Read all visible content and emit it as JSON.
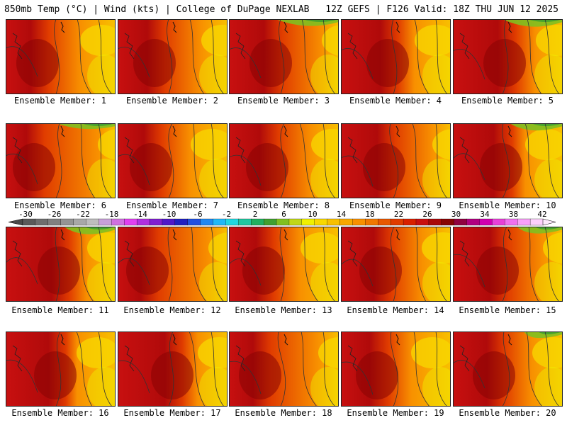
{
  "header": {
    "left": "850mb Temp (°C) | Wind (kts) | College of DuPage NEXLAB",
    "right": "12Z GEFS | F126 Valid: 18Z THU JUN 12 2025"
  },
  "caption_prefix": "Ensemble Member:",
  "members": [
    1,
    2,
    3,
    4,
    5,
    6,
    7,
    8,
    9,
    10,
    11,
    12,
    13,
    14,
    15,
    16,
    17,
    18,
    19,
    20
  ],
  "colorbar": {
    "labels": [
      "-30",
      "-26",
      "-22",
      "-18",
      "-14",
      "-10",
      "-6",
      "-2",
      "2",
      "6",
      "10",
      "14",
      "18",
      "22",
      "26",
      "30",
      "34",
      "38",
      "42"
    ],
    "colors": [
      "#5a5a5a",
      "#6e6e6e",
      "#808080",
      "#949494",
      "#a8a8a8",
      "#bdbdbd",
      "#c8a0d8",
      "#d070e0",
      "#e040f0",
      "#b030e0",
      "#8020d0",
      "#5018c8",
      "#2020c0",
      "#2050e0",
      "#2088f0",
      "#20b8f8",
      "#20d8e0",
      "#20c8a0",
      "#20b060",
      "#40a030",
      "#80c020",
      "#c0d818",
      "#f0f000",
      "#f8d800",
      "#f8c000",
      "#f8a800",
      "#f89000",
      "#f07800",
      "#e85800",
      "#e03c00",
      "#d82000",
      "#c81010",
      "#a80808",
      "#880404",
      "#900040",
      "#b00080",
      "#d000b0",
      "#e840d8",
      "#f070f0",
      "#f8a0f8",
      "#fcd0fc"
    ]
  }
}
